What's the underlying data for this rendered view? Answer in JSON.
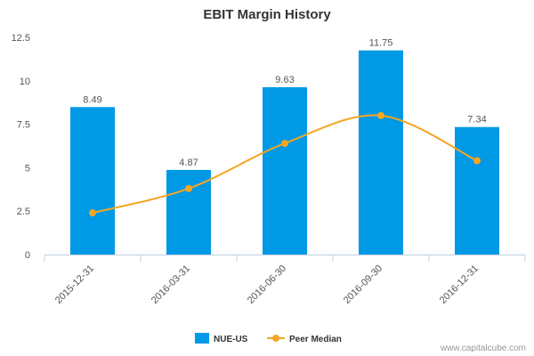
{
  "chart_data": {
    "type": "bar",
    "title": "EBIT Margin History",
    "xlabel": "",
    "ylabel": "",
    "categories": [
      "2015-12-31",
      "2016-03-31",
      "2016-06-30",
      "2016-09-30",
      "2016-12-31"
    ],
    "series": [
      {
        "name": "NUE-US",
        "type": "bar",
        "color": "#0099e6",
        "values": [
          8.49,
          4.87,
          9.63,
          11.75,
          7.34
        ],
        "labels": [
          "8.49",
          "4.87",
          "9.63",
          "11.75",
          "7.34"
        ]
      },
      {
        "name": "Peer Median",
        "type": "spline",
        "color": "#f5a623",
        "values": [
          2.4,
          3.8,
          6.4,
          8.0,
          5.4
        ]
      }
    ],
    "yticks": [
      0,
      2.5,
      5,
      7.5,
      10,
      12.5
    ],
    "ytick_labels": [
      "0",
      "2.5",
      "5",
      "7.5",
      "10",
      "12.5"
    ],
    "ylim": [
      0,
      12.5
    ],
    "grid": false,
    "legend": "bottom-center"
  },
  "watermark": "www.capitalcube.com"
}
